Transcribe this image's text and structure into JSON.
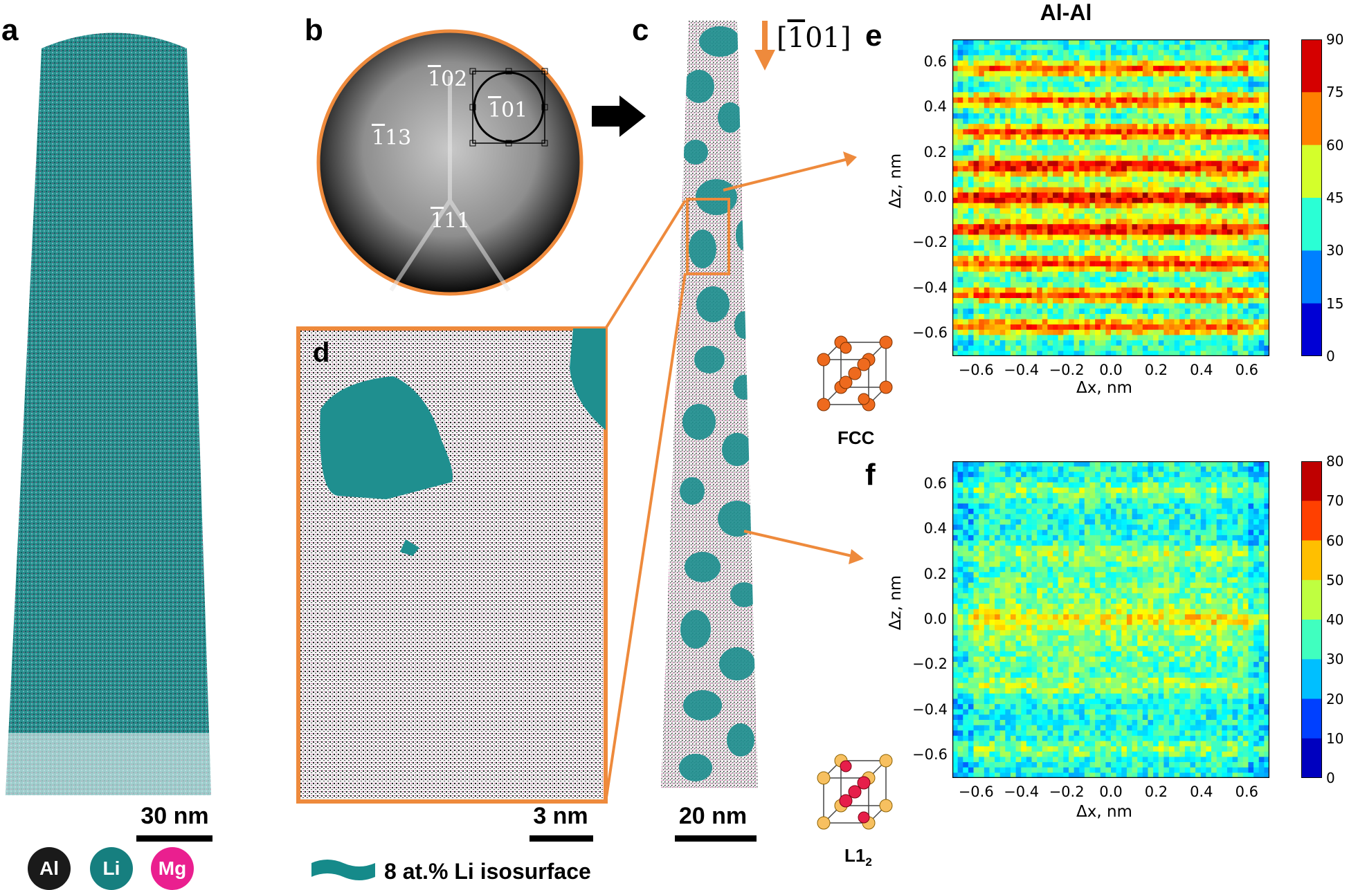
{
  "panels": {
    "a": {
      "label": "a",
      "scale_bar": "30 nm"
    },
    "b": {
      "label": "b",
      "poles": [
        {
          "bar": "1",
          "rest": "02"
        },
        {
          "bar": "1",
          "rest": "01"
        },
        {
          "bar": "1",
          "rest": "13"
        },
        {
          "bar": "1",
          "rest": "11"
        }
      ]
    },
    "c": {
      "label": "c",
      "scale_bar": "20 nm",
      "direction": {
        "open": "[",
        "bar": "1",
        "rest": "01]"
      }
    },
    "d": {
      "label": "d",
      "scale_bar": "3 nm"
    },
    "e": {
      "label": "e"
    },
    "f": {
      "label": "f"
    }
  },
  "legend": {
    "atoms": [
      {
        "symbol": "Al",
        "color": "#1a1a1a"
      },
      {
        "symbol": "Li",
        "color": "#167f7f"
      },
      {
        "symbol": "Mg",
        "color": "#ea1f8f"
      }
    ],
    "isosurface_label": "8 at.% Li isosurface",
    "isosurface_color": "#158a8a"
  },
  "crystal_labels": {
    "fcc": "FCC",
    "l12_main": "L1",
    "l12_sub": "2"
  },
  "colors": {
    "accent_orange": "#ee8a3c",
    "teal": "#168a8a"
  },
  "chart_data": [
    {
      "type": "heatmap",
      "title": "Al-Al",
      "xlabel": "Δx, nm",
      "ylabel": "Δz, nm",
      "xlim": [
        -0.7,
        0.7
      ],
      "ylim": [
        -0.7,
        0.7
      ],
      "xticks": [
        "−0.6",
        "−0.4",
        "−0.2",
        "0.0",
        "0.2",
        "0.4",
        "0.6"
      ],
      "yticks": [
        "0.6",
        "0.4",
        "0.2",
        "0.0",
        "−0.2",
        "−0.4",
        "−0.6"
      ],
      "colorbar": {
        "min": 0,
        "max": 90,
        "ticks": [
          "90",
          "75",
          "60",
          "45",
          "30",
          "15",
          "0"
        ]
      },
      "pattern": "strong horizontal stripes (FCC lattice planes)",
      "stripe_rows_nm": [
        -0.57,
        -0.43,
        -0.29,
        -0.14,
        0.0,
        0.14,
        0.29,
        0.43,
        0.57
      ]
    },
    {
      "type": "heatmap",
      "title": "",
      "xlabel": "Δx, nm",
      "ylabel": "Δz, nm",
      "xlim": [
        -0.7,
        0.7
      ],
      "ylim": [
        -0.7,
        0.7
      ],
      "xticks": [
        "−0.6",
        "−0.4",
        "−0.2",
        "0.0",
        "0.2",
        "0.4",
        "0.6"
      ],
      "yticks": [
        "0.6",
        "0.4",
        "0.2",
        "0.0",
        "−0.2",
        "−0.4",
        "−0.6"
      ],
      "colorbar": {
        "min": 0,
        "max": 80,
        "ticks": [
          "80",
          "70",
          "60",
          "50",
          "40",
          "30",
          "20",
          "10",
          "0"
        ]
      },
      "pattern": "weak horizontal stripes (L12 ordering)",
      "stripe_rows_nm": [
        -0.57,
        -0.29,
        0.0,
        0.29,
        0.57
      ]
    }
  ]
}
